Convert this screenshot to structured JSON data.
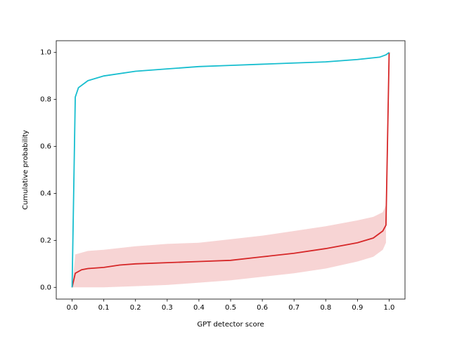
{
  "chart_data": {
    "type": "line",
    "xlabel": "GPT detector score",
    "ylabel": "Cumulative probability",
    "xlim": [
      -0.05,
      1.05
    ],
    "ylim": [
      -0.05,
      1.05
    ],
    "xticks": [
      {
        "value": 0,
        "label": "0.0"
      },
      {
        "value": 0.1,
        "label": "0.1"
      },
      {
        "value": 0.2,
        "label": "0.2"
      },
      {
        "value": 0.3,
        "label": "0.3"
      },
      {
        "value": 0.4,
        "label": "0.4"
      },
      {
        "value": 0.5,
        "label": "0.5"
      },
      {
        "value": 0.6,
        "label": "0.6"
      },
      {
        "value": 0.7,
        "label": "0.7"
      },
      {
        "value": 0.8,
        "label": "0.8"
      },
      {
        "value": 0.9,
        "label": "0.9"
      },
      {
        "value": 1,
        "label": "1.0"
      }
    ],
    "yticks": [
      {
        "value": 0,
        "label": "0.0"
      },
      {
        "value": 0.2,
        "label": "0.2"
      },
      {
        "value": 0.4,
        "label": "0.4"
      },
      {
        "value": 0.6,
        "label": "0.6"
      },
      {
        "value": 0.8,
        "label": "0.8"
      },
      {
        "value": 1,
        "label": "1.0"
      }
    ],
    "grid": false,
    "series": [
      {
        "color": "#d62728",
        "x": [
          0,
          0.01,
          0.03,
          0.05,
          0.1,
          0.15,
          0.2,
          0.3,
          0.4,
          0.5,
          0.6,
          0.7,
          0.8,
          0.9,
          0.95,
          0.98,
          0.99,
          1.0
        ],
        "values": [
          0,
          0.06,
          0.075,
          0.08,
          0.085,
          0.095,
          0.1,
          0.105,
          0.11,
          0.115,
          0.13,
          0.145,
          0.165,
          0.19,
          0.21,
          0.24,
          0.265,
          1.0
        ],
        "band": {
          "x": [
            0,
            0.01,
            0.05,
            0.1,
            0.2,
            0.3,
            0.4,
            0.5,
            0.6,
            0.7,
            0.8,
            0.9,
            0.95,
            0.98,
            0.99
          ],
          "lower": [
            0,
            0,
            0,
            0,
            0.005,
            0.01,
            0.02,
            0.03,
            0.045,
            0.06,
            0.08,
            0.11,
            0.13,
            0.16,
            0.19
          ],
          "upper": [
            0,
            0.14,
            0.155,
            0.16,
            0.175,
            0.185,
            0.19,
            0.205,
            0.22,
            0.24,
            0.26,
            0.285,
            0.3,
            0.32,
            0.35
          ]
        }
      },
      {
        "color": "#17becf",
        "x": [
          0,
          0.01,
          0.02,
          0.05,
          0.1,
          0.2,
          0.3,
          0.4,
          0.5,
          0.6,
          0.7,
          0.8,
          0.9,
          0.97,
          0.99,
          1.0
        ],
        "values": [
          0,
          0.81,
          0.85,
          0.88,
          0.9,
          0.92,
          0.93,
          0.94,
          0.945,
          0.95,
          0.955,
          0.96,
          0.97,
          0.98,
          0.99,
          1.0
        ]
      }
    ]
  }
}
